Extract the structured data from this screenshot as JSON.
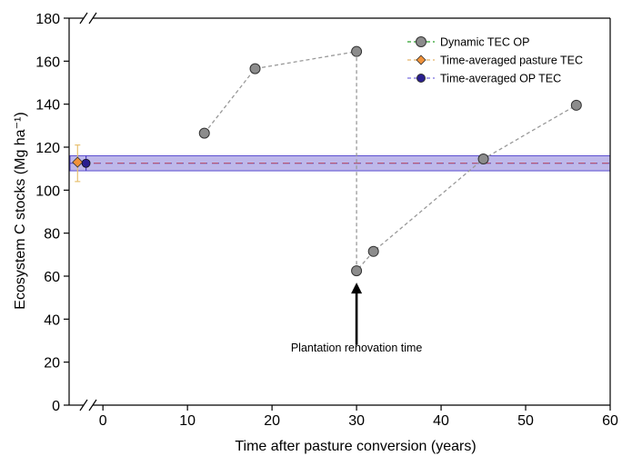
{
  "chart_data": {
    "type": "scatter",
    "xlabel": "Time after pasture conversion (years)",
    "ylabel": "Ecosystem C stocks (Mg ha⁻¹)",
    "xlim": [
      -4,
      60
    ],
    "ylim": [
      0,
      180
    ],
    "x_ticks": [
      0,
      10,
      20,
      30,
      40,
      50,
      60
    ],
    "y_ticks": [
      0,
      20,
      40,
      60,
      80,
      100,
      120,
      140,
      160,
      180
    ],
    "axis_breaks": true,
    "grid": false,
    "legend_position": "top-right",
    "legend": [
      {
        "label": "Dynamic TEC OP",
        "marker": "circle",
        "color": "#8c8c8c",
        "line_color": "#2ca02c"
      },
      {
        "label": "Time-averaged pasture TEC",
        "marker": "diamond",
        "color": "#f0923a",
        "line_color": "#e3b56a"
      },
      {
        "label": "Time-averaged OP TEC",
        "marker": "circle",
        "color": "#2a1f8f",
        "line_color": "#7b6fe0"
      }
    ],
    "series": [
      {
        "name": "Dynamic TEC OP",
        "color": "#8c8c8c",
        "line_color": "#999999",
        "points": [
          {
            "x": 12,
            "y": 126.5
          },
          {
            "x": 18,
            "y": 156.5
          },
          {
            "x": 30,
            "y": 164.5
          },
          {
            "x": 30,
            "y": 62.5
          },
          {
            "x": 32,
            "y": 71.5
          },
          {
            "x": 45,
            "y": 114.5
          },
          {
            "x": 56,
            "y": 139.5
          }
        ]
      }
    ],
    "time_averaged_pasture_tec": {
      "name": "Time-averaged pasture TEC",
      "x": -3,
      "y": 113,
      "error_low": 104,
      "error_high": 121,
      "color": "#f0923a",
      "line_color": "#d9534f"
    },
    "time_averaged_op_tec": {
      "name": "Time-averaged OP TEC",
      "x": -2,
      "y": 112.5,
      "band_low": 109,
      "band_high": 116,
      "color": "#2a1f8f",
      "band_color": "#b3abe6"
    },
    "annotation": {
      "text": "Plantation renovation time",
      "arrow_x": 30,
      "arrow_tip_y": 57,
      "arrow_tail_y": 28,
      "label_y": 25
    }
  }
}
